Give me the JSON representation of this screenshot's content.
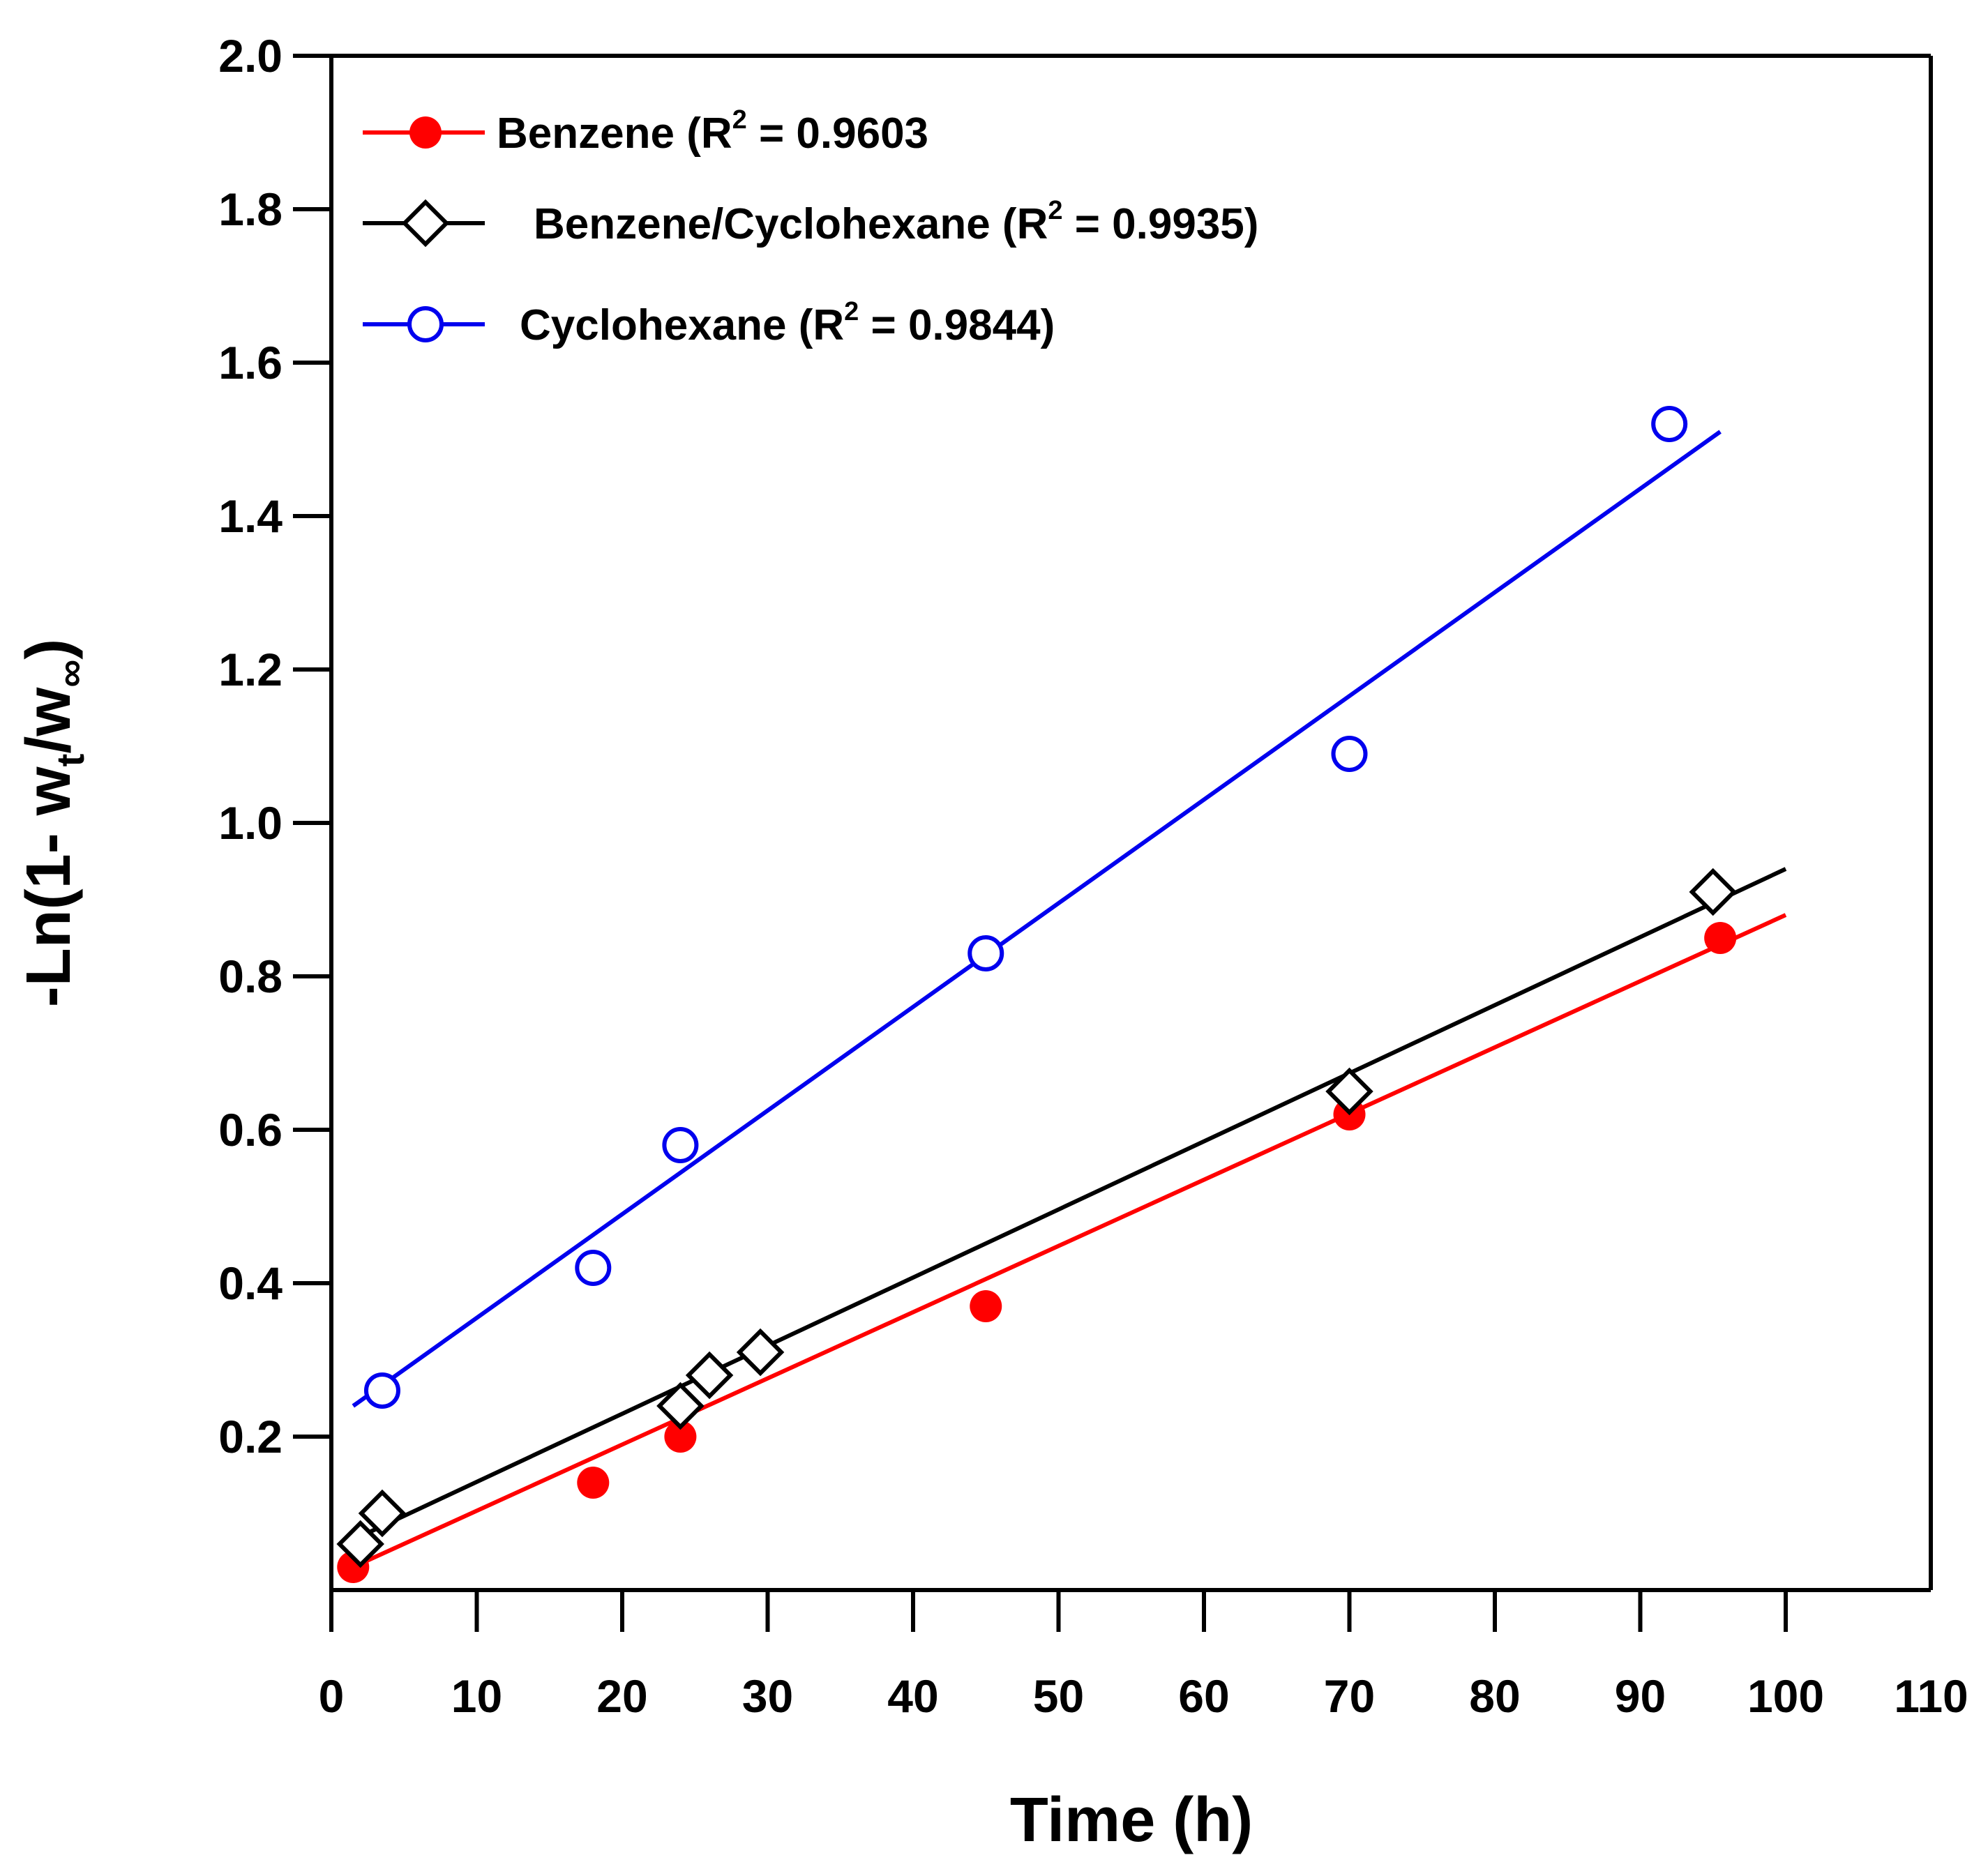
{
  "chart_data": {
    "type": "scatter",
    "xlabel": "Time (h)",
    "ylabel_parts": {
      "prefix": "-Ln(1- w",
      "sub_t": "t",
      "mid": "/w",
      "sub_inf": "∞",
      "suffix": ")"
    },
    "xlim": [
      0,
      110
    ],
    "ylim": [
      0.0,
      2.0
    ],
    "x_ticks": [
      0,
      10,
      20,
      30,
      40,
      50,
      60,
      70,
      80,
      90,
      100,
      110
    ],
    "y_ticks": [
      0.2,
      0.4,
      0.6,
      0.8,
      1.0,
      1.2,
      1.4,
      1.6,
      1.8,
      2.0
    ],
    "x_tick_labels": [
      "0",
      "10",
      "20",
      "30",
      "40",
      "50",
      "60",
      "70",
      "80",
      "90",
      "100",
      "110"
    ],
    "y_tick_labels": [
      "0.2",
      "0.4",
      "0.6",
      "0.8",
      "1.0",
      "1.2",
      "1.4",
      "1.6",
      "1.8",
      "2.0"
    ],
    "legend_position": "top-left",
    "series": [
      {
        "name": "Benzene",
        "legend_prefix": "Benzene  (R",
        "legend_sup": "2",
        "legend_suffix": " = 0.9603",
        "color": "#ff0000",
        "marker": "filled-circle",
        "points": [
          [
            1.5,
            0.03
          ],
          [
            18,
            0.14
          ],
          [
            24,
            0.2
          ],
          [
            45,
            0.37
          ],
          [
            70,
            0.62
          ],
          [
            95.5,
            0.85
          ]
        ],
        "fit": [
          [
            1.5,
            0.03
          ],
          [
            100,
            0.88
          ]
        ]
      },
      {
        "name": "Benzene/Cyclohexane",
        "legend_prefix": " Benzene/Cyclohexane (R",
        "legend_sup": "2",
        "legend_suffix": " = 0.9935)",
        "color": "#000000",
        "marker": "open-diamond",
        "points": [
          [
            2,
            0.06
          ],
          [
            3.5,
            0.1
          ],
          [
            24,
            0.24
          ],
          [
            26,
            0.28
          ],
          [
            29.5,
            0.31
          ],
          [
            70,
            0.65
          ],
          [
            95,
            0.91
          ]
        ],
        "fit": [
          [
            2,
            0.07
          ],
          [
            100,
            0.94
          ]
        ]
      },
      {
        "name": "Cyclohexane",
        "legend_prefix": "Cyclohexane (R",
        "legend_sup": "2",
        "legend_suffix": " = 0.9844)",
        "color": "#0000ee",
        "marker": "open-circle",
        "points": [
          [
            3.5,
            0.26
          ],
          [
            18,
            0.42
          ],
          [
            24,
            0.58
          ],
          [
            45,
            0.83
          ],
          [
            70,
            1.09
          ],
          [
            92,
            1.52
          ]
        ],
        "fit": [
          [
            1.5,
            0.24
          ],
          [
            95.5,
            1.51
          ]
        ]
      }
    ]
  }
}
